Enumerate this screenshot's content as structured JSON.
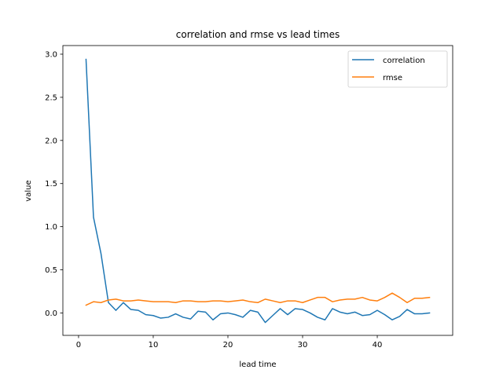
{
  "chart_data": {
    "type": "line",
    "title": "correlation and rmse vs lead times",
    "xlabel": "lead time",
    "ylabel": "value",
    "xlim": [
      -2.1,
      50.1
    ],
    "ylim": [
      -0.26,
      3.1
    ],
    "xticks": [
      0,
      10,
      20,
      30,
      40
    ],
    "xtick_labels": [
      "0",
      "10",
      "20",
      "30",
      "40"
    ],
    "yticks": [
      0.0,
      0.5,
      1.0,
      1.5,
      2.0,
      2.5,
      3.0
    ],
    "ytick_labels": [
      "0.0",
      "0.5",
      "1.0",
      "1.5",
      "2.0",
      "2.5",
      "3.0"
    ],
    "grid": false,
    "legend_position": "upper right",
    "x": [
      1,
      2,
      3,
      4,
      5,
      6,
      7,
      8,
      9,
      10,
      11,
      12,
      13,
      14,
      15,
      16,
      17,
      18,
      19,
      20,
      21,
      22,
      23,
      24,
      25,
      26,
      27,
      28,
      29,
      30,
      31,
      32,
      33,
      34,
      35,
      36,
      37,
      38,
      39,
      40,
      41,
      42,
      43,
      44,
      45,
      46,
      47
    ],
    "series": [
      {
        "name": "correlation",
        "color": "#1f77b4",
        "values": [
          2.94,
          1.11,
          0.69,
          0.12,
          0.03,
          0.12,
          0.04,
          0.03,
          -0.02,
          -0.03,
          -0.06,
          -0.05,
          -0.01,
          -0.05,
          -0.07,
          0.02,
          0.01,
          -0.08,
          -0.01,
          0.0,
          -0.02,
          -0.05,
          0.03,
          0.01,
          -0.11,
          -0.03,
          0.05,
          -0.02,
          0.05,
          0.04,
          0.0,
          -0.05,
          -0.08,
          0.05,
          0.01,
          -0.01,
          0.01,
          -0.03,
          -0.02,
          0.03,
          -0.02,
          -0.08,
          -0.04,
          0.04,
          -0.01,
          -0.01,
          0.0
        ]
      },
      {
        "name": "rmse",
        "color": "#ff7f0e",
        "values": [
          0.09,
          0.13,
          0.12,
          0.15,
          0.16,
          0.14,
          0.14,
          0.15,
          0.14,
          0.13,
          0.13,
          0.13,
          0.12,
          0.14,
          0.14,
          0.13,
          0.13,
          0.14,
          0.14,
          0.13,
          0.14,
          0.15,
          0.13,
          0.12,
          0.16,
          0.14,
          0.12,
          0.14,
          0.14,
          0.12,
          0.15,
          0.18,
          0.18,
          0.13,
          0.15,
          0.16,
          0.16,
          0.18,
          0.15,
          0.14,
          0.18,
          0.23,
          0.18,
          0.12,
          0.17,
          0.17,
          0.18
        ]
      }
    ]
  }
}
